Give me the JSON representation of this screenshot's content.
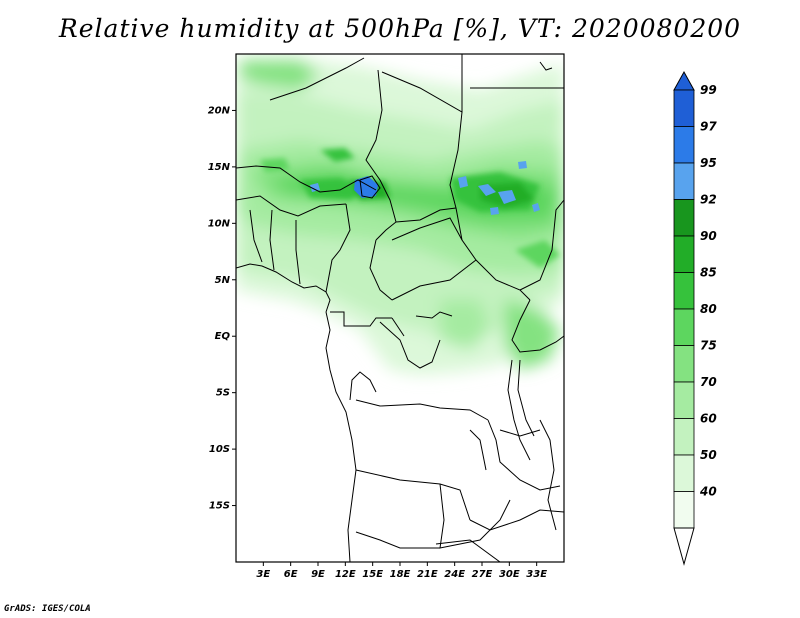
{
  "title": "Relative humidity at 500hPa [%], VT: 2020080200",
  "credit": "GrADS: IGES/COLA",
  "map": {
    "lon_range": [
      0,
      36
    ],
    "lat_range": [
      -20,
      25
    ],
    "lat_ticks": [
      {
        "value": 20,
        "label": "20N"
      },
      {
        "value": 15,
        "label": "15N"
      },
      {
        "value": 10,
        "label": "10N"
      },
      {
        "value": 5,
        "label": "5N"
      },
      {
        "value": 0,
        "label": "EQ"
      },
      {
        "value": -5,
        "label": "5S"
      },
      {
        "value": -10,
        "label": "10S"
      },
      {
        "value": -15,
        "label": "15S"
      }
    ],
    "lon_ticks": [
      {
        "value": 3,
        "label": "3E"
      },
      {
        "value": 6,
        "label": "6E"
      },
      {
        "value": 9,
        "label": "9E"
      },
      {
        "value": 12,
        "label": "12E"
      },
      {
        "value": 15,
        "label": "15E"
      },
      {
        "value": 18,
        "label": "18E"
      },
      {
        "value": 21,
        "label": "21E"
      },
      {
        "value": 24,
        "label": "24E"
      },
      {
        "value": 27,
        "label": "27E"
      },
      {
        "value": 30,
        "label": "30E"
      },
      {
        "value": 33,
        "label": "33E"
      }
    ]
  },
  "colorbar": {
    "levels": [
      {
        "label": "99",
        "color": "#1f5fd6"
      },
      {
        "label": "97",
        "color": "#2c7be8"
      },
      {
        "label": "95",
        "color": "#58a3ee"
      },
      {
        "label": "92",
        "color": "#18961e"
      },
      {
        "label": "90",
        "color": "#22ad28"
      },
      {
        "label": "85",
        "color": "#36c23c"
      },
      {
        "label": "80",
        "color": "#5dd65f"
      },
      {
        "label": "75",
        "color": "#84e281"
      },
      {
        "label": "70",
        "color": "#a5eba1"
      },
      {
        "label": "60",
        "color": "#c3f2bf"
      },
      {
        "label": "50",
        "color": "#dcf8d9"
      },
      {
        "label": "40",
        "color": "#f1fcef"
      }
    ]
  }
}
